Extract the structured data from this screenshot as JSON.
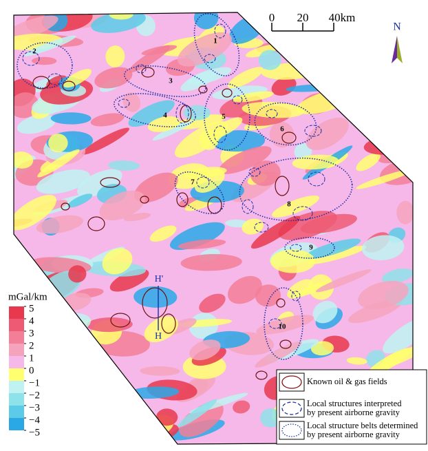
{
  "scale_bar": {
    "ticks": [
      0,
      20,
      {
        "value": 40,
        "label": "40km"
      }
    ]
  },
  "north": "N",
  "belts": [
    {
      "label": "1"
    },
    {
      "label": "2"
    },
    {
      "label": "3"
    },
    {
      "label": "4"
    },
    {
      "label": "5"
    },
    {
      "label": "6"
    },
    {
      "label": "7"
    },
    {
      "label": "8"
    },
    {
      "label": "9"
    },
    {
      "label": "10"
    }
  ],
  "profile": {
    "top": "H'",
    "bottom": "H"
  },
  "colorbar": {
    "unit": "mGal/km",
    "ticks": [
      5,
      4,
      3,
      2,
      1,
      0,
      {
        "value": -1,
        "label": "−1"
      },
      {
        "value": -2,
        "label": "−2"
      },
      {
        "value": -3,
        "label": "−3"
      },
      {
        "value": -4,
        "label": "−4"
      },
      {
        "value": -5,
        "label": "−5"
      }
    ],
    "colors": [
      "#e8384e",
      "#ee5a74",
      "#f27e98",
      "#f5a3bd",
      "#f5b8e8",
      "#ffff70",
      "#c0f2f2",
      "#8ee2ea",
      "#5ccbe8",
      "#2aa8e6"
    ]
  },
  "legend": [
    {
      "label": "Known oil & gas fields"
    },
    {
      "label": "Local structures interpreted",
      "label2": "by present airborne gravity"
    },
    {
      "label": "Local structure belts determined",
      "label2": "by present airborne gravity"
    }
  ]
}
